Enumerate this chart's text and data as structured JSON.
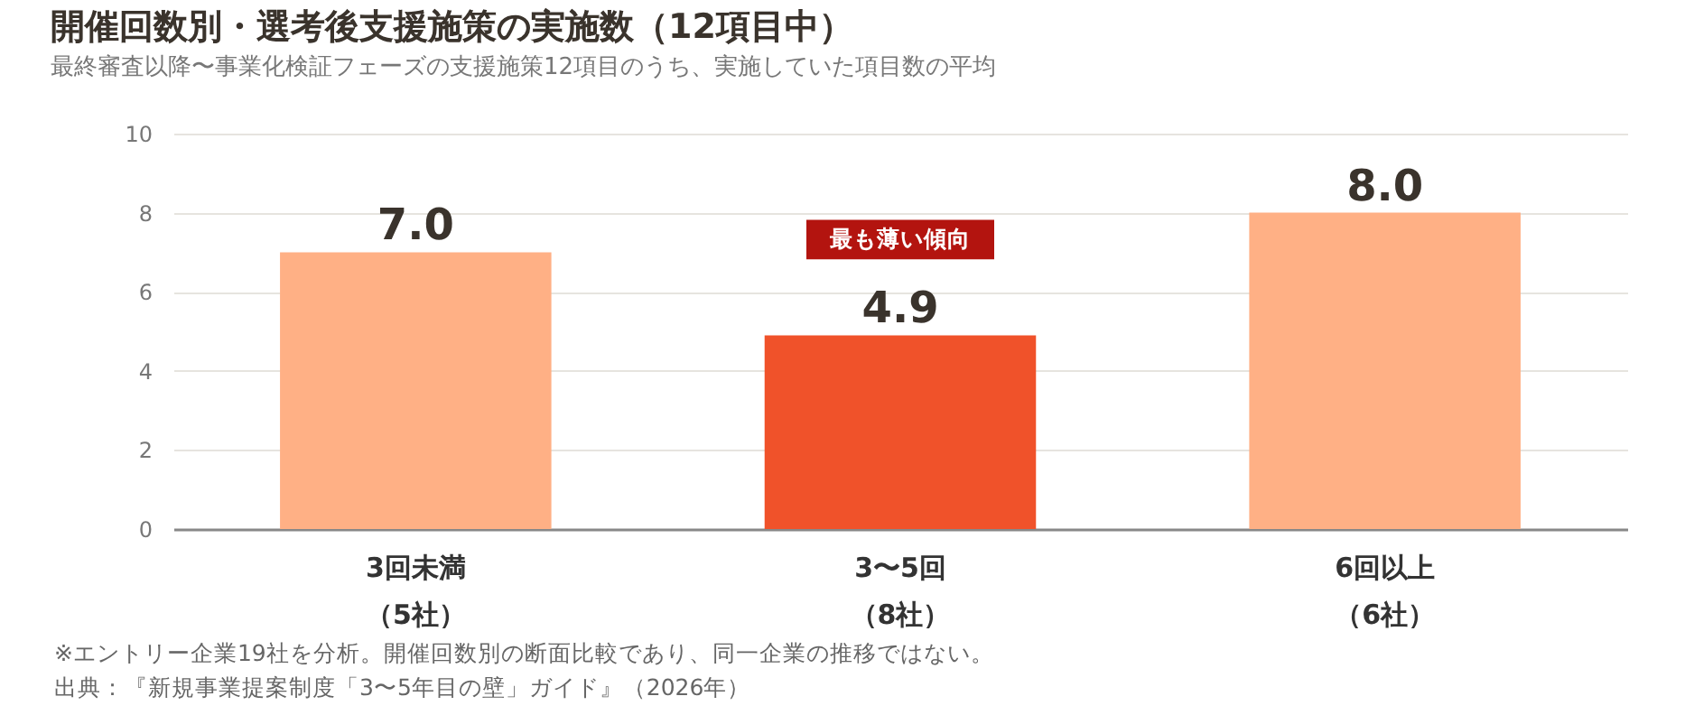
{
  "chart_data": {
    "type": "bar",
    "title": "開催回数別・選考後支援施策の実施数（12項目中）",
    "subtitle": "最終審査以降〜事業化検証フェーズの支援施策12項目のうち、実施していた項目数の平均",
    "categories": [
      "3回未満（5社）",
      "3〜5回（8社）",
      "6回以上（6社）"
    ],
    "values": [
      7.0,
      4.9,
      8.0
    ],
    "colors": [
      "#ffb085",
      "#f0522a",
      "#ffb085"
    ],
    "value_labels": [
      "7.0",
      "4.9",
      "8.0"
    ],
    "ylim": [
      0,
      10
    ],
    "yticks": [
      0,
      2,
      4,
      6,
      8,
      10
    ],
    "grid": "y",
    "annotations": [
      "最も薄い傾向",
      "※エントリー企業19社を分析。開催回数別の断面比較であり、同一企業の推移ではない。",
      "出典：『新規事業提案制度「3〜5年目の壁」ガイド』（2026年）"
    ]
  }
}
